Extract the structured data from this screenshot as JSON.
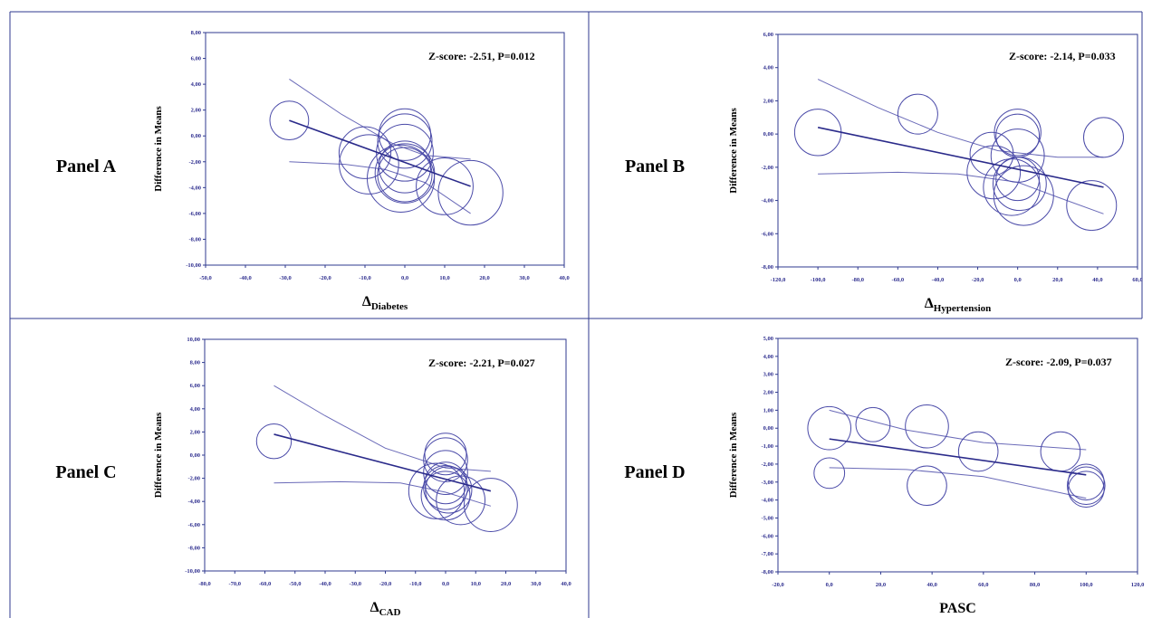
{
  "chart_data": [
    {
      "panel_label": "Panel A",
      "type": "scatter",
      "annotation": "Z-score: -2.51, P=0.012",
      "xlabel_main": "Δ",
      "xlabel_sub": "Diabetes",
      "ylabel": "Difference in Means",
      "xlim": [
        -50,
        40
      ],
      "ylim": [
        -10,
        8
      ],
      "xticks": [
        "-50,0",
        "-40,0",
        "-30,0",
        "-20,0",
        "-10,0",
        "0,0",
        "10,0",
        "20,0",
        "30,0",
        "40,0"
      ],
      "yticks": [
        "-10,00",
        "-8,00",
        "-6,00",
        "-4,00",
        "-2,00",
        "0,00",
        "2,00",
        "4,00",
        "6,00",
        "8,00"
      ],
      "points": [
        {
          "x": -29,
          "y": 1.2,
          "r": 1.5
        },
        {
          "x": -10,
          "y": -1.3,
          "r": 2.0
        },
        {
          "x": -9,
          "y": -2.2,
          "r": 2.3
        },
        {
          "x": 0,
          "y": 0.1,
          "r": 2.0
        },
        {
          "x": 0,
          "y": -0.4,
          "r": 2.1
        },
        {
          "x": 0,
          "y": -1.3,
          "r": 2.2
        },
        {
          "x": 0,
          "y": -2.4,
          "r": 2.0
        },
        {
          "x": 0,
          "y": -2.9,
          "r": 2.3
        },
        {
          "x": -1,
          "y": -3.3,
          "r": 2.6
        },
        {
          "x": 0,
          "y": -3.0,
          "r": 2.1
        },
        {
          "x": 10,
          "y": -3.9,
          "r": 2.2
        },
        {
          "x": 16.5,
          "y": -4.4,
          "r": 2.5
        }
      ],
      "regression": [
        [
          -29,
          1.2
        ],
        [
          16.5,
          -3.9
        ]
      ],
      "ci_upper": [
        [
          -29,
          4.4
        ],
        [
          -16,
          1.7
        ],
        [
          -3,
          -0.6
        ],
        [
          5,
          -1.5
        ],
        [
          16.5,
          -1.8
        ]
      ],
      "ci_lower": [
        [
          -29,
          -2.0
        ],
        [
          -15,
          -2.2
        ],
        [
          -5,
          -2.6
        ],
        [
          5,
          -3.6
        ],
        [
          16.5,
          -6.0
        ]
      ]
    },
    {
      "panel_label": "Panel B",
      "type": "scatter",
      "annotation": "Z-score: -2.14, P=0.033",
      "xlabel_main": "Δ",
      "xlabel_sub": "Hypertension",
      "ylabel": "Difference in Means",
      "xlim": [
        -120,
        60
      ],
      "ylim": [
        -8,
        6
      ],
      "xticks": [
        "-120,0",
        "-100,0",
        "-80,0",
        "-60,0",
        "-40,0",
        "-20,0",
        "0,0",
        "20,0",
        "40,0",
        "60,0"
      ],
      "yticks": [
        "-8,00",
        "-6,00",
        "-4,00",
        "-2,00",
        "0,00",
        "2,00",
        "4,00",
        "6,00"
      ],
      "points": [
        {
          "x": -100,
          "y": 0.1,
          "r": 1.4
        },
        {
          "x": -50,
          "y": 1.2,
          "r": 1.2
        },
        {
          "x": -13,
          "y": -1.2,
          "r": 1.3
        },
        {
          "x": -12,
          "y": -2.3,
          "r": 1.6
        },
        {
          "x": 0,
          "y": 0.1,
          "r": 1.4
        },
        {
          "x": 0,
          "y": -0.1,
          "r": 1.3
        },
        {
          "x": 0,
          "y": -1.3,
          "r": 1.6
        },
        {
          "x": 0,
          "y": -2.7,
          "r": 1.3
        },
        {
          "x": -3,
          "y": -3.2,
          "r": 1.7
        },
        {
          "x": 1,
          "y": -3.0,
          "r": 1.6
        },
        {
          "x": 3,
          "y": -3.7,
          "r": 1.8
        },
        {
          "x": 37,
          "y": -4.3,
          "r": 1.5
        },
        {
          "x": 43,
          "y": -0.2,
          "r": 1.2
        }
      ],
      "regression": [
        [
          -100,
          0.4
        ],
        [
          43,
          -3.2
        ]
      ],
      "ci_upper": [
        [
          -100,
          3.3
        ],
        [
          -70,
          1.6
        ],
        [
          -40,
          0.1
        ],
        [
          -10,
          -1.0
        ],
        [
          20,
          -1.4
        ],
        [
          43,
          -1.4
        ]
      ],
      "ci_lower": [
        [
          -100,
          -2.4
        ],
        [
          -60,
          -2.3
        ],
        [
          -30,
          -2.4
        ],
        [
          0,
          -2.9
        ],
        [
          20,
          -3.8
        ],
        [
          43,
          -4.8
        ]
      ]
    },
    {
      "panel_label": "Panel C",
      "type": "scatter",
      "annotation": "Z-score: -2.21, P=0.027",
      "xlabel_main": "Δ",
      "xlabel_sub": "CAD",
      "ylabel": "Difference in Means",
      "xlim": [
        -80,
        40
      ],
      "ylim": [
        -10,
        10
      ],
      "xticks": [
        "-80,0",
        "-70,0",
        "-60,0",
        "-50,0",
        "-40,0",
        "-30,0",
        "-20,0",
        "-10,0",
        "0,0",
        "10,0",
        "20,0",
        "30,0",
        "40,0"
      ],
      "yticks": [
        "-10,00",
        "-8,00",
        "-6,00",
        "-4,00",
        "-2,00",
        "0,00",
        "2,00",
        "4,00",
        "6,00",
        "8,00",
        "10,00"
      ],
      "points": [
        {
          "x": -57,
          "y": 1.2,
          "r": 1.5
        },
        {
          "x": 0,
          "y": 0.1,
          "r": 1.8
        },
        {
          "x": 0,
          "y": -0.4,
          "r": 1.9
        },
        {
          "x": 0,
          "y": -1.5,
          "r": 1.9
        },
        {
          "x": 0,
          "y": -2.4,
          "r": 1.8
        },
        {
          "x": 0,
          "y": -2.8,
          "r": 1.9
        },
        {
          "x": 1,
          "y": -3.0,
          "r": 2.0
        },
        {
          "x": -3,
          "y": -3.1,
          "r": 2.4
        },
        {
          "x": 0,
          "y": -3.5,
          "r": 2.1
        },
        {
          "x": 5,
          "y": -3.9,
          "r": 2.1
        },
        {
          "x": 15,
          "y": -4.3,
          "r": 2.3
        }
      ],
      "regression": [
        [
          -57,
          1.8
        ],
        [
          15,
          -3.1
        ]
      ],
      "ci_upper": [
        [
          -57,
          6.0
        ],
        [
          -40,
          3.4
        ],
        [
          -20,
          0.6
        ],
        [
          0,
          -1.1
        ],
        [
          15,
          -1.4
        ]
      ],
      "ci_lower": [
        [
          -57,
          -2.4
        ],
        [
          -35,
          -2.3
        ],
        [
          -15,
          -2.4
        ],
        [
          0,
          -3.2
        ],
        [
          15,
          -4.4
        ]
      ]
    },
    {
      "panel_label": "Panel D",
      "type": "scatter",
      "annotation": "Z-score: -2.09, P=0.037",
      "xlabel_main": "PASC",
      "xlabel_sub": "",
      "ylabel": "Difference in Means",
      "xlim": [
        -20,
        120
      ],
      "ylim": [
        -8,
        5
      ],
      "xticks": [
        "-20,0",
        "0,0",
        "20,0",
        "40,0",
        "60,0",
        "80,0",
        "100,0",
        "120,0"
      ],
      "yticks": [
        "-8,00",
        "-7,00",
        "-6,00",
        "-5,00",
        "-4,00",
        "-3,00",
        "-2,00",
        "-1,00",
        "0,00",
        "1,00",
        "2,00",
        "3,00",
        "4,00",
        "5,00"
      ],
      "points": [
        {
          "x": 0,
          "y": 0.0,
          "r": 1.2
        },
        {
          "x": 17,
          "y": 0.2,
          "r": 0.95
        },
        {
          "x": 38,
          "y": 0.1,
          "r": 1.2
        },
        {
          "x": 58,
          "y": -1.3,
          "r": 1.1
        },
        {
          "x": 90,
          "y": -1.3,
          "r": 1.1
        },
        {
          "x": 0,
          "y": -2.5,
          "r": 0.85
        },
        {
          "x": 38,
          "y": -3.2,
          "r": 1.1
        },
        {
          "x": 100,
          "y": -3.0,
          "r": 1.0
        },
        {
          "x": 100,
          "y": -3.2,
          "r": 1.05
        },
        {
          "x": 100,
          "y": -3.4,
          "r": 1.0
        }
      ],
      "regression": [
        [
          0,
          -0.6
        ],
        [
          100,
          -2.6
        ]
      ],
      "ci_upper": [
        [
          0,
          1.0
        ],
        [
          30,
          -0.1
        ],
        [
          60,
          -0.8
        ],
        [
          100,
          -1.2
        ]
      ],
      "ci_lower": [
        [
          0,
          -2.2
        ],
        [
          30,
          -2.3
        ],
        [
          60,
          -2.7
        ],
        [
          100,
          -3.9
        ]
      ]
    }
  ],
  "colors": {
    "line": "#2a2a8a",
    "bubble": "#4a4aa8",
    "border": "#2f3a8f"
  }
}
